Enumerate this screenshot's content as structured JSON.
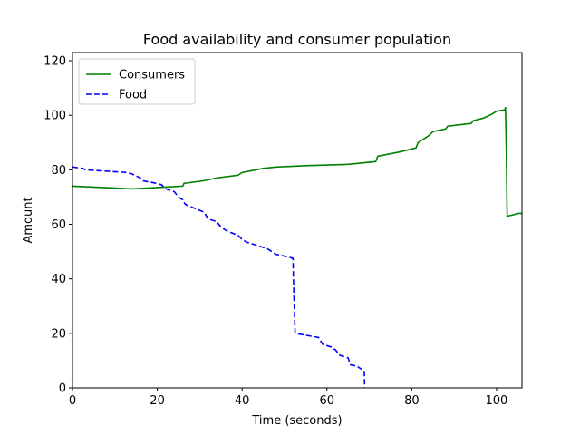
{
  "chart_data": {
    "type": "line",
    "title": "Food availability and consumer population",
    "xlabel": "Time (seconds)",
    "ylabel": "Amount",
    "xlim": [
      0,
      106
    ],
    "ylim": [
      0,
      123
    ],
    "xticks": [
      0,
      20,
      40,
      60,
      80,
      100
    ],
    "yticks": [
      0,
      20,
      40,
      60,
      80,
      100,
      120
    ],
    "grid": false,
    "legend": "top-left",
    "series": [
      {
        "name": "Consumers",
        "color": "#008000",
        "style": "solid",
        "x": [
          0,
          14,
          20,
          26,
          26.3,
          31,
          34,
          39,
          40,
          45,
          48,
          55,
          65,
          71.5,
          72,
          77,
          81,
          81.5,
          84,
          85,
          88,
          88.5,
          94,
          94.5,
          97,
          99,
          100,
          102,
          102.1,
          102.3,
          102.5,
          104,
          105,
          106
        ],
        "y": [
          74,
          73,
          73.5,
          74,
          75,
          76,
          77,
          78,
          79,
          80.5,
          81,
          81.5,
          82,
          83,
          85,
          86.5,
          88,
          90,
          92.5,
          94,
          95,
          96,
          97,
          98,
          99,
          100.5,
          101.5,
          102,
          103,
          88,
          63,
          63.5,
          64,
          64
        ]
      },
      {
        "name": "Food",
        "color": "#0000ff",
        "style": "dashed",
        "x": [
          0,
          2.5,
          3,
          8,
          13,
          14,
          16,
          16.5,
          20,
          21,
          22,
          24,
          25,
          26,
          26.5,
          27,
          31,
          32,
          34,
          35,
          36,
          36.5,
          39,
          40,
          41,
          46,
          48,
          51,
          52,
          52.1,
          52.5,
          58,
          59,
          61,
          62,
          63,
          64,
          65,
          65.5,
          67,
          68,
          68.8,
          68.9
        ],
        "y": [
          81,
          80.5,
          80,
          79.5,
          79,
          78.5,
          77,
          76,
          75,
          74.5,
          73,
          72,
          70,
          69,
          67.5,
          67,
          64.5,
          62,
          61,
          59,
          58,
          57.5,
          56,
          54.5,
          53.5,
          51,
          49,
          48,
          47.5,
          40,
          20,
          18.5,
          16,
          15,
          14,
          12,
          11.5,
          11,
          8.5,
          8,
          7,
          6.5,
          0
        ]
      }
    ]
  }
}
